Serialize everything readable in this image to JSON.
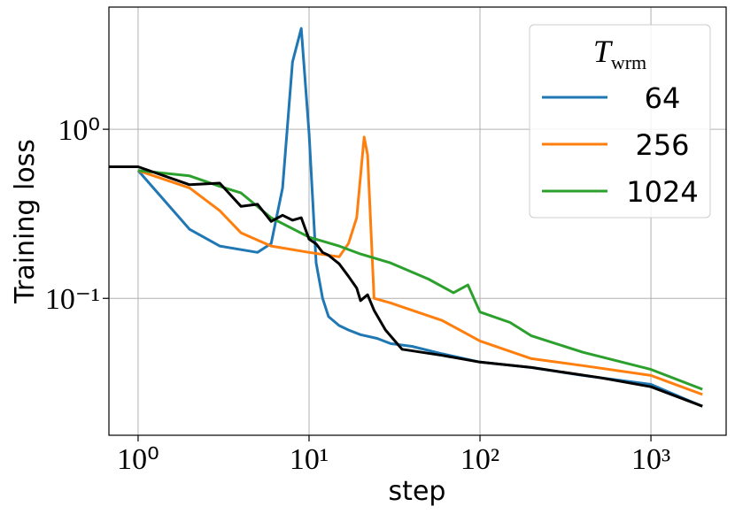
{
  "chart_data": {
    "type": "line",
    "xlabel": "step",
    "ylabel": "Training loss",
    "xscale": "log",
    "yscale": "log",
    "grid": true,
    "legend_loc": "upper right",
    "legend_title": {
      "main": "T",
      "sub": "wrm"
    },
    "xlim": [
      0.675,
      2754
    ],
    "ylim": [
      0.0155,
      5.28
    ],
    "xticks": [
      {
        "value": 1,
        "label": "10⁰"
      },
      {
        "value": 10,
        "label": "10¹"
      },
      {
        "value": 100,
        "label": "10²"
      },
      {
        "value": 1000,
        "label": "10³"
      }
    ],
    "yticks": [
      {
        "value": 0.1,
        "label": "10⁻¹"
      },
      {
        "value": 1,
        "label": "10⁰"
      }
    ],
    "series": [
      {
        "name": "64",
        "color": "#1f77b4",
        "x": [
          1,
          2,
          3,
          5,
          6,
          7,
          8,
          9,
          10,
          11,
          12,
          13,
          15,
          17,
          20,
          25,
          30,
          40,
          60,
          100,
          200,
          400,
          1000,
          1500,
          2000
        ],
        "values": [
          0.57,
          0.256,
          0.204,
          0.187,
          0.211,
          0.45,
          2.5,
          3.95,
          0.95,
          0.162,
          0.1,
          0.078,
          0.069,
          0.065,
          0.061,
          0.058,
          0.054,
          0.052,
          0.047,
          0.042,
          0.039,
          0.035,
          0.031,
          0.026,
          0.023
        ]
      },
      {
        "name": "256",
        "color": "#ff7f0e",
        "x": [
          1,
          2,
          3,
          4,
          6,
          10,
          15,
          17,
          19,
          21,
          22,
          24,
          30,
          40,
          60,
          100,
          200,
          400,
          1000,
          2000
        ],
        "values": [
          0.57,
          0.45,
          0.33,
          0.244,
          0.204,
          0.187,
          0.176,
          0.211,
          0.3,
          0.9,
          0.705,
          0.1,
          0.094,
          0.085,
          0.074,
          0.056,
          0.044,
          0.04,
          0.035,
          0.027
        ]
      },
      {
        "name": "1024",
        "color": "#2ca02c",
        "x": [
          1,
          2,
          3,
          4,
          6,
          10,
          15,
          20,
          30,
          50,
          70,
          85,
          100,
          150,
          200,
          400,
          1000,
          2000
        ],
        "values": [
          0.57,
          0.53,
          0.46,
          0.42,
          0.3,
          0.23,
          0.204,
          0.183,
          0.162,
          0.13,
          0.108,
          0.12,
          0.083,
          0.072,
          0.06,
          0.048,
          0.038,
          0.029
        ]
      },
      {
        "color": "#000000",
        "x": [
          0.675,
          1,
          2,
          3,
          4,
          5,
          6,
          7,
          8,
          9,
          10,
          11,
          12,
          13,
          15,
          17,
          19,
          20,
          22,
          24,
          28,
          35,
          60,
          100,
          200,
          500,
          1000,
          2000
        ],
        "values": [
          0.6,
          0.6,
          0.47,
          0.48,
          0.35,
          0.36,
          0.285,
          0.31,
          0.29,
          0.3,
          0.224,
          0.21,
          0.187,
          0.18,
          0.16,
          0.135,
          0.115,
          0.097,
          0.105,
          0.085,
          0.065,
          0.05,
          0.046,
          0.042,
          0.039,
          0.034,
          0.03,
          0.023
        ]
      }
    ]
  }
}
